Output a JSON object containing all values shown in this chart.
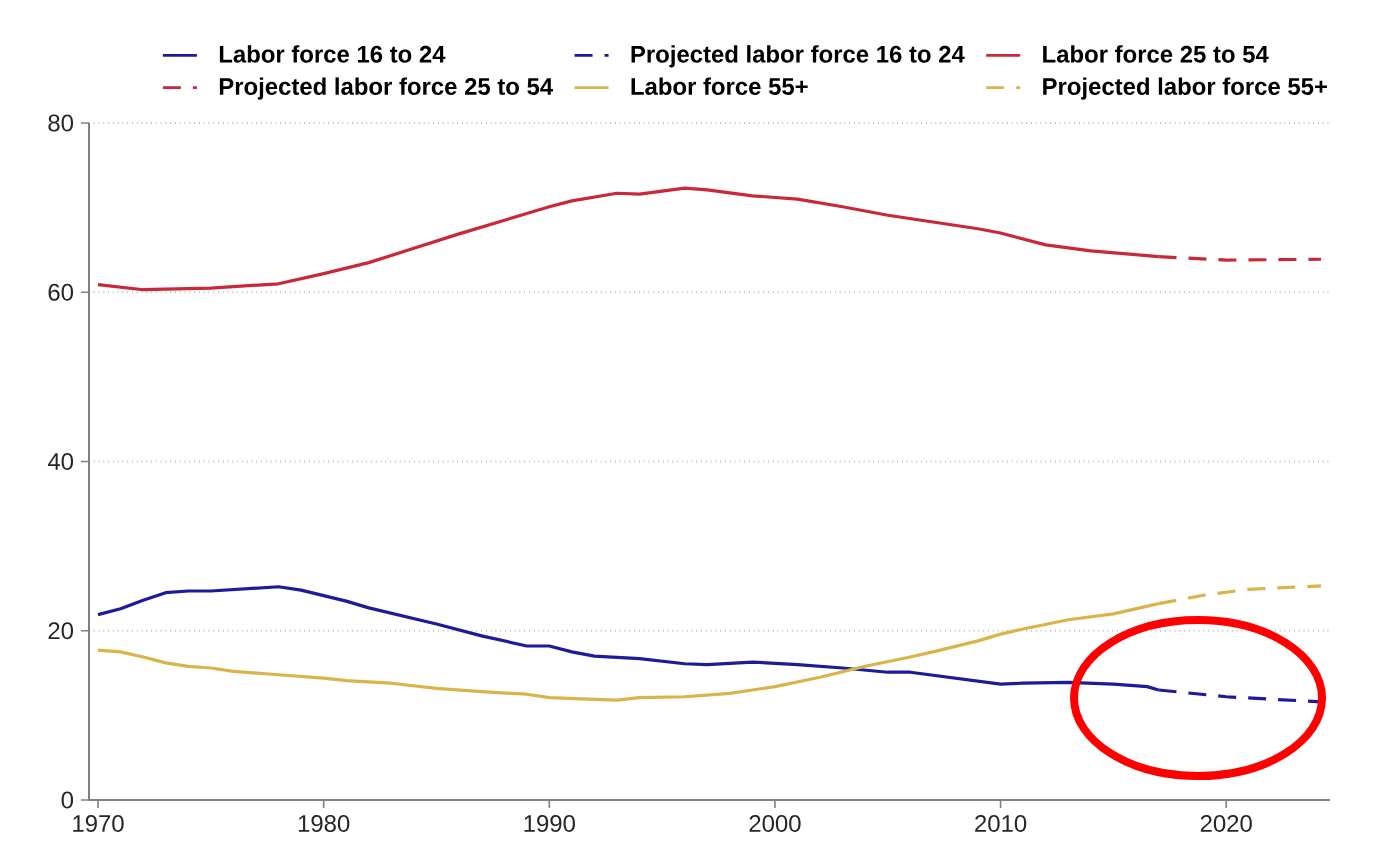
{
  "chart_data": {
    "type": "line",
    "xlim": [
      1969.6,
      2024.6
    ],
    "ylim": [
      0,
      80
    ],
    "xticks": [
      1970,
      1980,
      1990,
      2000,
      2010,
      2020
    ],
    "yticks": [
      0,
      20,
      40,
      60,
      80
    ],
    "grid": "y",
    "legend": "top",
    "series": [
      {
        "name": "Labor force 16 to 24",
        "color": "#1f1a9a",
        "line_style": "solid",
        "x": [
          1970,
          1971,
          1972,
          1973,
          1974,
          1975,
          1978,
          1979,
          1981,
          1982,
          1985,
          1987,
          1989,
          1990,
          1991,
          1992,
          1994,
          1996,
          1997,
          1999,
          2001,
          2003,
          2005,
          2006,
          2008,
          2010,
          2011,
          2013,
          2015,
          2016.5,
          2017
        ],
        "values": [
          21.9,
          22.6,
          23.6,
          24.5,
          24.7,
          24.7,
          25.2,
          24.8,
          23.5,
          22.7,
          20.8,
          19.4,
          18.2,
          18.2,
          17.5,
          17.0,
          16.7,
          16.1,
          16.0,
          16.3,
          16.0,
          15.6,
          15.1,
          15.1,
          14.4,
          13.7,
          13.8,
          13.9,
          13.7,
          13.4,
          13.0
        ]
      },
      {
        "name": "Projected labor force 16 to 24",
        "color": "#1f1a9a",
        "line_style": "dashed",
        "x": [
          2017,
          2020,
          2024.2
        ],
        "values": [
          13.0,
          12.2,
          11.6
        ]
      },
      {
        "name": "Labor force 25 to 54",
        "color": "#c8283a",
        "line_style": "solid",
        "x": [
          1970,
          1972,
          1975,
          1978,
          1980,
          1982,
          1984,
          1986,
          1988,
          1990,
          1991,
          1993,
          1994,
          1996,
          1997,
          1999,
          2001,
          2003,
          2005,
          2007,
          2009,
          2010,
          2012,
          2014,
          2017
        ],
        "values": [
          60.9,
          60.3,
          60.5,
          61.0,
          62.2,
          63.5,
          65.2,
          66.9,
          68.5,
          70.1,
          70.8,
          71.7,
          71.6,
          72.3,
          72.1,
          71.4,
          71.0,
          70.1,
          69.1,
          68.3,
          67.5,
          67.0,
          65.6,
          64.9,
          64.2
        ]
      },
      {
        "name": "Projected labor force 25 to 54",
        "color": "#c8283a",
        "line_style": "dashed",
        "x": [
          2017,
          2020,
          2024.2
        ],
        "values": [
          64.2,
          63.8,
          63.9
        ]
      },
      {
        "name": "Labor force 55+",
        "color": "#d9b44a",
        "line_style": "solid",
        "x": [
          1970,
          1971,
          1972,
          1973,
          1974,
          1975,
          1976,
          1978,
          1980,
          1981,
          1983,
          1985,
          1987,
          1989,
          1990,
          1992,
          1993,
          1994,
          1996,
          1998,
          2000,
          2002,
          2004,
          2006,
          2007,
          2009,
          2010,
          2011,
          2013,
          2015,
          2016.5,
          2017
        ],
        "values": [
          17.7,
          17.5,
          16.9,
          16.2,
          15.8,
          15.6,
          15.2,
          14.8,
          14.4,
          14.1,
          13.8,
          13.2,
          12.8,
          12.5,
          12.1,
          11.9,
          11.8,
          12.1,
          12.2,
          12.6,
          13.4,
          14.5,
          15.8,
          16.9,
          17.5,
          18.8,
          19.6,
          20.2,
          21.3,
          22.0,
          22.9,
          23.2
        ]
      },
      {
        "name": "Projected labor force 55+",
        "color": "#d9b44a",
        "line_style": "dashed",
        "x": [
          2017,
          2019,
          2021,
          2024.2
        ],
        "values": [
          23.2,
          24.2,
          24.9,
          25.3
        ]
      }
    ]
  }
}
